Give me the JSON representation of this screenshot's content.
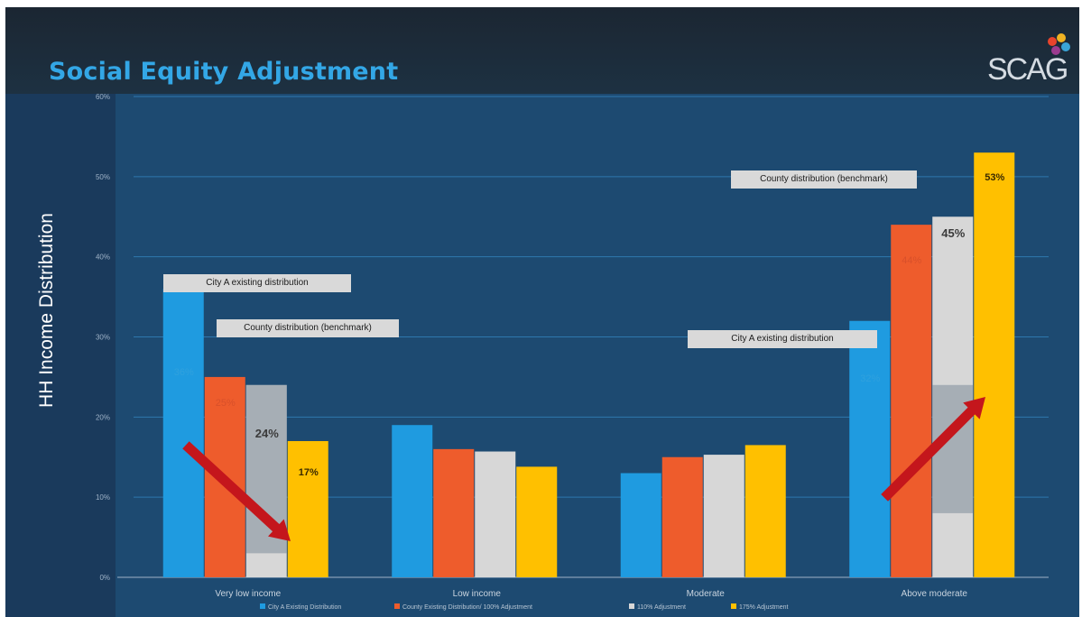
{
  "slide": {
    "title": "Social Equity Adjustment",
    "logo_text": "SCAG"
  },
  "chart_data": {
    "type": "bar",
    "title": "Social Equity Adjustment",
    "ylabel": "HH Income Distribution",
    "xlabel": "",
    "ylim": [
      0,
      60
    ],
    "yticks": [
      "0%",
      "10%",
      "20%",
      "30%",
      "40%",
      "50%",
      "60%"
    ],
    "grid": true,
    "legend_position": "bottom",
    "categories": [
      "Very low income",
      "Low income",
      "Moderate",
      "Above moderate"
    ],
    "series": [
      {
        "name": "City A Existing Distribution",
        "color": "#1f9be0",
        "values": [
          36,
          19,
          13,
          32
        ],
        "labels": [
          "36%",
          "",
          "",
          "32%"
        ]
      },
      {
        "name": "County Existing Distribution/ 100% Adjustment",
        "color": "#ee5c2c",
        "values": [
          25,
          16,
          15,
          44
        ],
        "labels": [
          "25%",
          "",
          "",
          "44%"
        ]
      },
      {
        "name": "110% Adjustment",
        "color": "#d7d7d7",
        "values": [
          24,
          15.7,
          15.3,
          45
        ],
        "labels": [
          "24%",
          "",
          "",
          "45%"
        ]
      },
      {
        "name": "175% Adjustment",
        "color": "#ffc000",
        "values": [
          17,
          13.8,
          16.5,
          53
        ],
        "labels": [
          "17%",
          "",
          "",
          "53%"
        ]
      }
    ],
    "annotations": [
      {
        "text": "City A existing distribution"
      },
      {
        "text": "County distribution (benchmark)"
      },
      {
        "text": "County distribution (benchmark)"
      },
      {
        "text": "City A existing distribution"
      }
    ]
  }
}
